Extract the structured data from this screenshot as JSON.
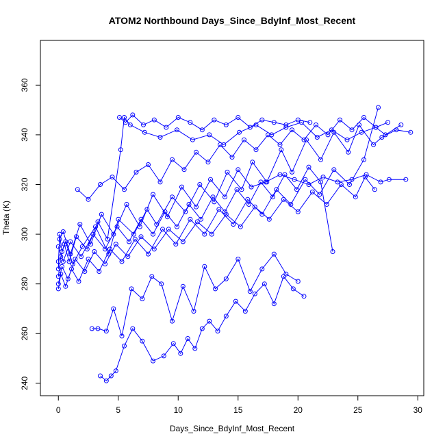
{
  "chart_data": {
    "type": "scatter",
    "title": "ATOM2 Northbound Days_Since_BdyInf_Most_Recent",
    "xlabel": "Days_Since_BdyInf_Most_Recent",
    "ylabel": "Theta (K)",
    "xlim": [
      -1.5,
      30.5
    ],
    "ylim": [
      235,
      378
    ],
    "xticks": [
      0,
      5,
      10,
      15,
      20,
      25,
      30
    ],
    "yticks": [
      240,
      260,
      280,
      300,
      320,
      340,
      360
    ],
    "marker": "open-circle",
    "connected": true,
    "color": "#0000ff",
    "grid": false,
    "legend": "none",
    "series": [
      {
        "x": [
          0.0,
          0.1,
          0.3,
          0.6,
          1.2,
          2.0,
          3.1,
          4.2,
          5.0,
          6.3,
          7.4,
          8.2,
          9.5,
          10.6,
          11.8,
          13.0,
          14.1,
          15.3,
          16.2,
          17.4,
          18.6,
          19.5,
          20.7,
          21.9,
          23.0,
          24.2,
          25.1,
          26.3,
          27.0,
          28.2,
          29.4
        ],
        "y": [
          286,
          300,
          293,
          297,
          288,
          295,
          303,
          292,
          306,
          300,
          310,
          304,
          315,
          309,
          320,
          313,
          325,
          318,
          329,
          321,
          334,
          325,
          338,
          330,
          341,
          333,
          344,
          336,
          339,
          342,
          341
        ]
      },
      {
        "x": [
          0.0,
          0.2,
          0.5,
          0.9,
          1.5,
          2.4,
          3.3,
          4.1,
          5.2,
          5.5,
          6.0,
          7.2,
          8.5,
          9.9,
          11.2,
          12.6,
          13.8,
          15.1,
          16.5,
          17.8,
          19.0,
          20.3,
          21.6,
          22.8,
          24.1,
          25.3,
          26.5,
          27.3,
          28.6
        ],
        "y": [
          283,
          291,
          296,
          289,
          299,
          294,
          305,
          298,
          334,
          347,
          344,
          341,
          339,
          342,
          338,
          340,
          336,
          341,
          344,
          340,
          343,
          345,
          339,
          342,
          338,
          341,
          343,
          340,
          344
        ]
      },
      {
        "x": [
          0.0,
          0.1,
          0.4,
          1.0,
          1.8,
          2.7,
          3.6,
          4.6,
          5.7,
          6.8,
          7.9,
          9.1,
          10.3,
          11.5,
          12.7,
          13.9,
          15.0,
          16.1,
          17.3,
          18.5,
          19.7,
          20.9,
          22.1,
          23.3,
          24.5,
          25.7,
          26.9,
          27.6,
          29.0
        ],
        "y": [
          289,
          298,
          301,
          292,
          304,
          296,
          308,
          300,
          312,
          303,
          316,
          307,
          319,
          311,
          322,
          315,
          326,
          319,
          321,
          324,
          322,
          320,
          323,
          321,
          322,
          324,
          321,
          322,
          322
        ]
      },
      {
        "x": [
          0.0,
          0.3,
          0.8,
          1.4,
          2.2,
          3.0,
          3.9,
          4.8,
          5.8,
          6.9,
          8.0,
          9.2,
          10.4,
          11.6,
          12.8,
          14.0,
          15.2,
          16.4,
          17.6,
          18.8,
          20.0,
          21.2,
          22.4,
          23.6,
          24.8,
          25.6,
          26.4
        ],
        "y": [
          280,
          287,
          282,
          290,
          285,
          293,
          288,
          296,
          291,
          299,
          294,
          302,
          297,
          305,
          300,
          308,
          303,
          311,
          306,
          314,
          309,
          317,
          312,
          320,
          315,
          323,
          318
        ]
      },
      {
        "x": [
          3.5,
          4.0,
          4.4,
          4.8,
          5.5,
          6.2,
          7.0,
          7.9,
          8.8,
          9.6,
          10.2,
          10.8,
          11.4,
          12.0,
          12.6,
          13.3,
          14.0,
          14.8,
          15.6,
          16.4,
          17.2,
          18.0,
          18.8,
          19.6,
          20.5
        ],
        "y": [
          243,
          241,
          243,
          245,
          255,
          262,
          257,
          249,
          251,
          256,
          252,
          258,
          254,
          262,
          265,
          261,
          267,
          273,
          269,
          276,
          280,
          272,
          283,
          278,
          275
        ]
      },
      {
        "x": [
          2.8,
          3.3,
          4.0,
          4.6,
          5.3,
          6.1,
          7.0,
          7.8,
          8.6,
          9.5,
          10.4,
          11.3,
          12.2,
          13.1,
          14.0,
          15.0,
          16.0,
          17.0,
          18.0,
          19.0,
          20.0
        ],
        "y": [
          262,
          262,
          261,
          270,
          259,
          278,
          274,
          283,
          280,
          265,
          279,
          269,
          287,
          278,
          282,
          290,
          277,
          286,
          292,
          284,
          281
        ]
      },
      {
        "x": [
          0.0,
          0.2,
          0.6,
          1.1,
          1.7,
          2.5,
          3.4,
          4.3,
          5.3,
          6.4,
          7.5,
          8.7,
          9.8,
          11.0,
          12.2,
          13.4,
          14.6,
          15.8,
          17.0,
          18.2,
          19.4,
          20.6,
          21.8,
          23.0,
          24.3,
          25.5,
          26.7
        ],
        "y": [
          278,
          284,
          279,
          286,
          281,
          290,
          285,
          294,
          289,
          298,
          292,
          302,
          296,
          306,
          300,
          310,
          304,
          314,
          308,
          318,
          312,
          322,
          316,
          326,
          320,
          330,
          351
        ]
      },
      {
        "x": [
          1.6,
          2.5,
          3.5,
          4.5,
          5.5,
          6.5,
          7.5,
          8.5,
          9.5,
          10.5,
          11.5,
          12.5,
          13.5,
          14.5,
          15.5,
          16.5,
          17.5,
          18.5,
          19.5,
          20.5,
          21.5,
          22.5,
          23.5,
          24.5,
          25.5,
          26.5,
          27.5
        ],
        "y": [
          318,
          314,
          320,
          323,
          318,
          325,
          328,
          321,
          330,
          326,
          333,
          329,
          336,
          331,
          338,
          334,
          340,
          336,
          342,
          338,
          344,
          340,
          346,
          342,
          347,
          343,
          345
        ]
      },
      {
        "x": [
          0.0,
          0.4,
          1.0,
          1.9,
          2.9,
          3.9,
          4.9,
          5.9,
          6.9,
          7.9,
          8.9,
          9.9,
          10.9,
          11.9,
          12.9,
          13.9,
          14.9,
          15.9,
          16.9,
          17.9,
          18.9,
          19.9,
          20.9,
          21.9,
          22.9
        ],
        "y": [
          295,
          289,
          297,
          291,
          300,
          294,
          303,
          297,
          306,
          300,
          309,
          303,
          312,
          306,
          315,
          309,
          318,
          312,
          321,
          315,
          324,
          318,
          327,
          321,
          293
        ]
      },
      {
        "x": [
          5.1,
          5.6,
          6.2,
          7.1,
          8.0,
          9.0,
          10.0,
          11.0,
          12.0,
          13.0,
          14.0,
          15.0,
          16.0,
          17.0,
          18.0,
          19.0,
          20.0,
          21.0
        ],
        "y": [
          347,
          345,
          348,
          344,
          346,
          343,
          347,
          345,
          342,
          346,
          344,
          347,
          343,
          346,
          345,
          344,
          346,
          345
        ]
      }
    ]
  }
}
